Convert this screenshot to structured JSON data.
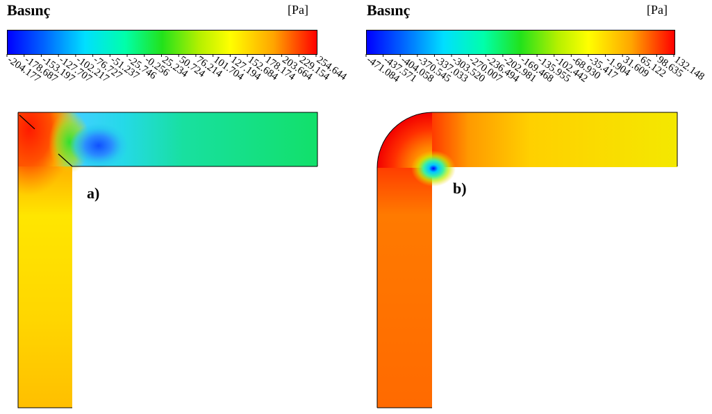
{
  "panel_a": {
    "title": "Basınç",
    "unit": "[Pa]",
    "label": "a)",
    "colorbar_ticks": [
      "-204.177",
      "-178.687",
      "-153.197",
      "-127.707",
      "-102.217",
      "-76.727",
      "-51.237",
      "-25.746",
      "-0.256",
      "25.234",
      "50.724",
      "76.214",
      "101.704",
      "127.194",
      "152.684",
      "178.174",
      "203.664",
      "229.154",
      "254.644"
    ]
  },
  "panel_b": {
    "title": "Basınç",
    "unit": "[Pa]",
    "label": "b)",
    "colorbar_ticks": [
      "-471.084",
      "-437.571",
      "-404.058",
      "-370.545",
      "-337.033",
      "-303.520",
      "-270.007",
      "-236.494",
      "-202.981",
      "-169.468",
      "-135.955",
      "-102.442",
      "-68.930",
      "-35.417",
      "-1.904",
      "31.609",
      "65.122",
      "98.635",
      "132.148"
    ]
  },
  "colors": {
    "red": "#ff0000",
    "orange": "#ffa500",
    "yellow": "#ffff00",
    "green": "#22e21b",
    "cyan": "#00dfff",
    "blue": "#0000ff"
  }
}
